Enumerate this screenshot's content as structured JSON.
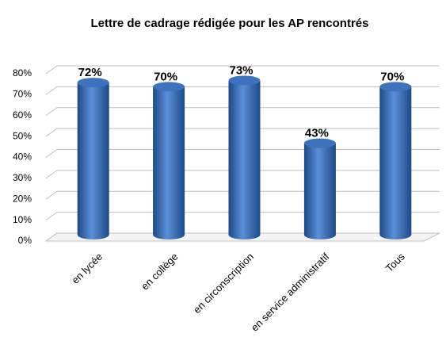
{
  "chart_data": {
    "type": "bar",
    "title": "Lettre de cadrage rédigée pour les AP rencontrés",
    "categories": [
      "en lycée",
      "en collège",
      "en circonscription",
      "en service administratif",
      "Tous"
    ],
    "values": [
      72,
      70,
      73,
      43,
      70
    ],
    "value_labels": [
      "72%",
      "70%",
      "73%",
      "43%",
      "70%"
    ],
    "color": "#2f63ad",
    "ylim": [
      0,
      80
    ],
    "yticks": [
      {
        "value": 0,
        "label": "0%"
      },
      {
        "value": 10,
        "label": "10%"
      },
      {
        "value": 20,
        "label": "20%"
      },
      {
        "value": 30,
        "label": "30%"
      },
      {
        "value": 40,
        "label": "40%"
      },
      {
        "value": 50,
        "label": "50%"
      },
      {
        "value": 60,
        "label": "60%"
      },
      {
        "value": 70,
        "label": "70%"
      },
      {
        "value": 80,
        "label": "80%"
      }
    ],
    "grid": true
  }
}
